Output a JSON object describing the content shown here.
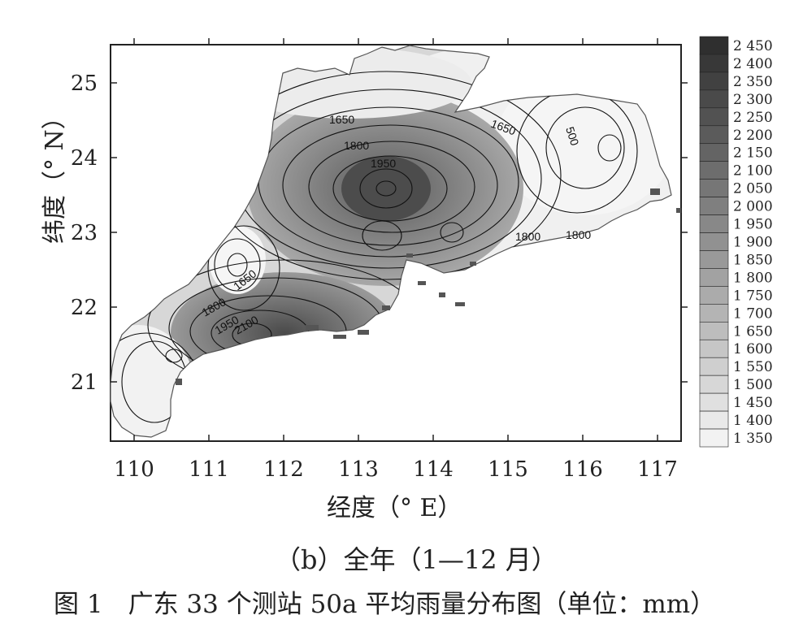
{
  "figure": {
    "y_axis_label": "纬度（° N）",
    "x_axis_label": "经度（° E）",
    "subtitle": "（b）全年（1—12 月）",
    "caption": "图 1　广东 33 个测站 50a 平均雨量分布图（单位：mm）"
  },
  "map": {
    "x_ticks": [
      "110",
      "111",
      "112",
      "113",
      "114",
      "115",
      "116",
      "117"
    ],
    "y_ticks": [
      "21",
      "22",
      "23",
      "24",
      "25"
    ],
    "contour_labels": [
      "1650",
      "1800",
      "1950",
      "1650",
      "500",
      "1800",
      "1800",
      "1650",
      "1800",
      "1950",
      "2100"
    ],
    "legend_values": [
      "2 450",
      "2 400",
      "2 350",
      "2 300",
      "2 250",
      "2 200",
      "2 150",
      "2 100",
      "2 050",
      "2 000",
      "1 950",
      "1 900",
      "1 850",
      "1 800",
      "1 750",
      "1 700",
      "1 650",
      "1 600",
      "1 550",
      "1 500",
      "1 450",
      "1 400",
      "1 350"
    ],
    "colors": {
      "low": "#f2f2f2",
      "high": "#2f2f2f",
      "contour": "#111111"
    }
  }
}
